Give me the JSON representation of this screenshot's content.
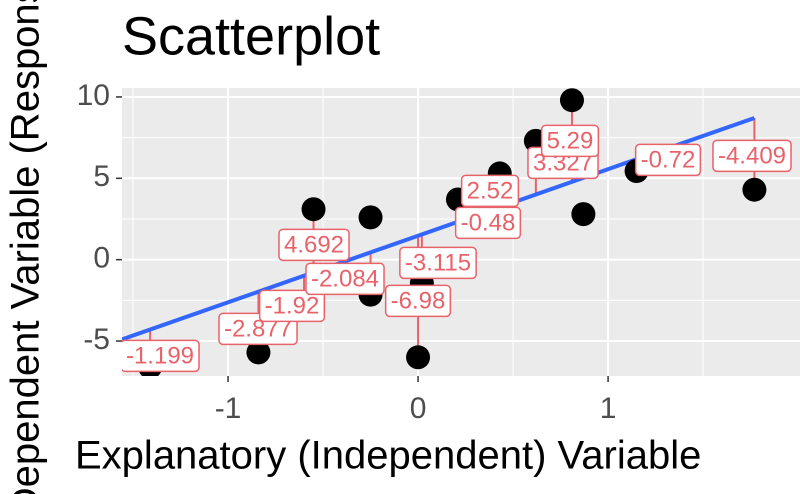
{
  "chart_data": {
    "type": "scatter",
    "title": "Scatterplot",
    "x_label": "Explanatory (Independent) Variable",
    "y_label": "Dependent Variable (Response)",
    "x": [
      -1.41,
      -0.84,
      -0.6,
      -0.55,
      -0.25,
      -0.25,
      0.02,
      0,
      0.21,
      0.35,
      0.43,
      0.62,
      0.81,
      0.87,
      1.15,
      1.77
    ],
    "y": [
      -6.6,
      -5.7,
      -2.9,
      3.1,
      2.6,
      -2.15,
      -1.45,
      -6.0,
      3.7,
      2.4,
      5.3,
      7.3,
      9.8,
      2.8,
      5.45,
      4.3
    ],
    "residuals": [
      -1.199,
      -2.877,
      -1.92,
      4.692,
      null,
      -2.084,
      -3.115,
      -6.98,
      null,
      -0.48,
      2.52,
      3.327,
      5.29,
      null,
      -0.72,
      -4.409
    ],
    "fit": {
      "intercept": 1.47,
      "slope": 4.09
    },
    "point_color": "#000000",
    "line_color": "#3366ff",
    "label_color": "#e8626a",
    "xlim": [
      -1.558,
      2.01
    ],
    "ylim": [
      -7.15,
      10.55
    ],
    "xticks": [
      -1,
      0,
      1
    ],
    "yticks": [
      -5,
      0,
      5,
      10
    ],
    "grid": true
  }
}
